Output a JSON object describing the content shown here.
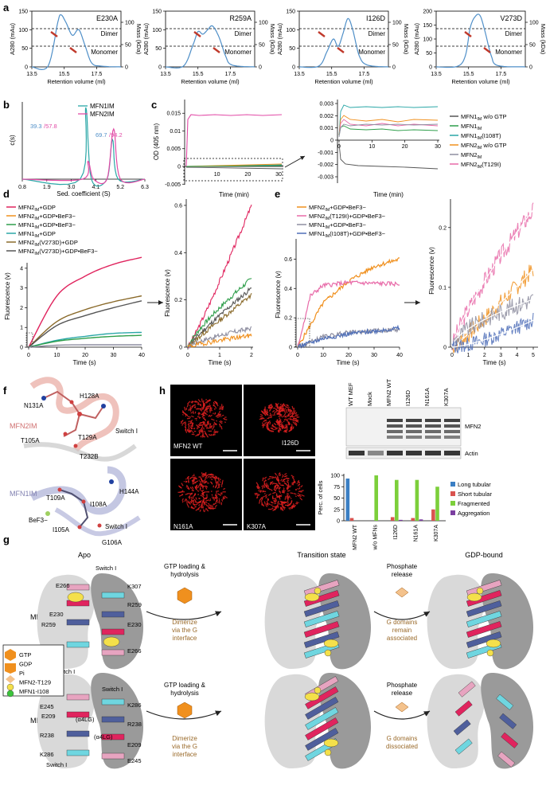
{
  "panel_letters": {
    "a": "a",
    "b": "b",
    "c": "c",
    "d": "d",
    "e": "e",
    "f": "f",
    "g": "g",
    "h": "h"
  },
  "colors": {
    "blue_line": "#4f8fc8",
    "red_arrow": "#c0392b",
    "teal": "#2aa7a7",
    "magenta": "#e24aa6",
    "crimson": "#e0245e",
    "orange": "#f0901e",
    "green": "#2e9e4a",
    "gray": "#8e8ea0",
    "brown": "#8a6a2a",
    "dark_gray": "#555555",
    "slate_blue": "#4f6fb8",
    "pink": "#e86aa8",
    "cell_red": "#e02020",
    "bar_blue": "#3b7fc4",
    "bar_red": "#d9534f",
    "bar_green": "#7ccf3b",
    "bar_purple": "#7b3fa0",
    "tan": "#9a6a2a",
    "gtp": "#f0901e",
    "pi": "#f4c28c",
    "yellow_dot": "#f4e04a",
    "green_dot": "#3cc43c"
  },
  "panel_a": {
    "ylabel_left": "A280 (mAu)",
    "ylabel_right": "Mass (kDa)",
    "xlabel": "Retention volume (ml)",
    "dimer": "Dimer",
    "monomer": "Monomer",
    "xticks": [
      "13.5",
      "15.5",
      "17.5"
    ],
    "right_ticks": [
      "100",
      "50",
      "0"
    ],
    "plots": [
      {
        "title": "E230A",
        "yticks": [
          "150",
          "100",
          "50",
          "0"
        ]
      },
      {
        "title": "R259A",
        "yticks": [
          "150",
          "100",
          "50",
          "0"
        ]
      },
      {
        "title": "I126D",
        "yticks": [
          "150",
          "100",
          "50",
          "0"
        ]
      },
      {
        "title": "V273D",
        "yticks": [
          "200",
          "150",
          "100",
          "50",
          "0"
        ]
      }
    ]
  },
  "panel_b": {
    "ylabel": "c(s)",
    "xlabel": "Sed. coefficient (S)",
    "xticks": [
      "0.8",
      "1.9",
      "3.0",
      "4.1",
      "5.2",
      "6.3"
    ],
    "legend": [
      "MFN1IM",
      "MFN2IM"
    ],
    "ann1a": "39.3",
    "ann1b": "/57.8",
    "ann2a": "69.7",
    "ann2b": "/94.2"
  },
  "panel_c": {
    "ylabel": "OD (405 nm)",
    "xlabel": "Time (min)",
    "yticks_left": [
      "0.015",
      "0.01",
      "0.005",
      "0",
      "-0.005"
    ],
    "xticks_left": [
      "10",
      "20",
      "30"
    ],
    "yticks_right": [
      "0.003",
      "0.002",
      "0.001",
      "0",
      "-0.001",
      "-0.002",
      "-0.003"
    ],
    "xticks_right": [
      "0",
      "10",
      "20",
      "30"
    ],
    "legend": [
      "MFN1IM w/o GTP",
      "MFN1IM",
      "MFN1IM(I108T)",
      "MFN2IM w/o GTP",
      "MFN2IM",
      "MFN2IM(T129I)"
    ],
    "zero_left": "0"
  },
  "panel_d": {
    "ylabel": "Fluorescence (v)",
    "xlabel": "Time (s)",
    "yticks_left": [
      "4",
      "3",
      "2",
      "1",
      "0"
    ],
    "xticks_left": [
      "0",
      "10",
      "20",
      "30",
      "40"
    ],
    "yticks_right": [
      "0.6",
      "0.4",
      "0.2",
      "0"
    ],
    "xticks_right": [
      "0",
      "1",
      "2"
    ],
    "legend": [
      "MFN2IM+GDP",
      "MFN2IM+GDP•BeF3−",
      "MFN1IM+GDP•BeF3−",
      "MFN1IM+GDP",
      "MFN2IM(V273D)+GDP",
      "MFN2IM(V273D)+GDP•BeF3−"
    ]
  },
  "panel_e": {
    "ylabel": "Fluorescence (v)",
    "xlabel": "Time (s)",
    "yticks_left": [
      "0.6",
      "0.4",
      "0.2",
      "0"
    ],
    "xticks_left": [
      "0",
      "10",
      "20",
      "30",
      "40"
    ],
    "yticks_right": [
      "0.2",
      "0.1",
      "0"
    ],
    "xticks_right": [
      "0",
      "1",
      "2",
      "3",
      "4",
      "5"
    ],
    "legend": [
      "MFN2IM+GDP•BeF3−",
      "MFN2IM(T129I)+GDP•BeF3−",
      "MFN1IM+GDP•BeF3−",
      "MFN1IM(I108T)+GDP•BeF3−"
    ]
  },
  "panel_f": {
    "mfn2": "MFN2IM",
    "mfn1": "MFN1IM",
    "top_labels": [
      "H128A",
      "N131A",
      "T105A",
      "T129A",
      "Switch I",
      "T232B"
    ],
    "bottom_labels": [
      "H144A",
      "T109A",
      "I108A",
      "BeF3−",
      "I105A",
      "Switch I",
      "G106A"
    ]
  },
  "panel_h": {
    "cells": [
      "MFN2 WT",
      "I126D",
      "N161A",
      "K307A"
    ],
    "blot_cols": [
      "WT MEF",
      "Mock",
      "MFN2 WT",
      "I126D",
      "N161A",
      "K307A"
    ],
    "blot_rows": [
      "MFN2",
      "Actin"
    ],
    "bar_ylabel": "Perc. of cells",
    "bar_yticks": [
      "100",
      "75",
      "50",
      "25",
      "0"
    ],
    "bar_categories": [
      "MFN2 WT",
      "w/o MFNs",
      "I126D",
      "N161A",
      "K307A"
    ],
    "bar_legend": [
      "Long tubular",
      "Short tubular",
      "Fragmented",
      "Aggregation"
    ]
  },
  "panel_g": {
    "col_titles": [
      "Apo",
      "Transition state",
      "GDP-bound"
    ],
    "rows": [
      "MFN2",
      "MFN1"
    ],
    "step1": [
      "GTP loading &",
      "hydrolysis"
    ],
    "step1b": [
      "Dimerize",
      "via the G",
      "interface"
    ],
    "step2": [
      "Phosphate",
      "release"
    ],
    "mfn2_out": [
      "G domains",
      "remain",
      "associated"
    ],
    "mfn1_out": [
      "G domains",
      "dissociated"
    ],
    "legend": [
      "GTP",
      "GDP",
      "Pi",
      "MFN2-T129",
      "MFN1-I108"
    ],
    "mfn2_res": [
      "E266",
      "K307",
      "R259",
      "E230",
      "R259",
      "E230",
      "K307",
      "E266",
      "Switch I",
      "Switch I"
    ],
    "mfn1_res": [
      "Switch I",
      "E245",
      "K286",
      "E209",
      "R238",
      "(α4LG)",
      "R238",
      "(α4LG)",
      "E209",
      "K286",
      "E245",
      "Switch I"
    ]
  },
  "chart_data": [
    {
      "type": "line",
      "title": "E230A",
      "xlabel": "Retention volume (ml)",
      "ylabel": "A280 (mAu)",
      "xlim": [
        13.5,
        19
      ],
      "ylim": [
        0,
        150
      ],
      "x": [
        13.5,
        14.5,
        15.1,
        15.3,
        15.6,
        16.0,
        16.4,
        16.8,
        17.2,
        17.8,
        19
      ],
      "y": [
        0,
        2,
        120,
        140,
        120,
        85,
        100,
        55,
        10,
        2,
        0
      ]
    },
    {
      "type": "line",
      "title": "R259A",
      "xlabel": "Retention volume (ml)",
      "ylabel": "A280 (mAu)",
      "xlim": [
        13.5,
        19
      ],
      "ylim": [
        0,
        150
      ],
      "x": [
        13.5,
        14.6,
        15.2,
        15.5,
        15.8,
        16.1,
        16.4,
        16.8,
        17.2,
        17.6,
        19
      ],
      "y": [
        0,
        2,
        60,
        95,
        88,
        100,
        110,
        80,
        30,
        5,
        0
      ]
    },
    {
      "type": "line",
      "title": "I126D",
      "xlabel": "Retention volume (ml)",
      "ylabel": "A280 (mAu)",
      "xlim": [
        13.5,
        19
      ],
      "ylim": [
        0,
        150
      ],
      "x": [
        13.5,
        14.7,
        15.2,
        15.6,
        15.9,
        16.2,
        16.5,
        16.8,
        17.2,
        17.7,
        19
      ],
      "y": [
        0,
        2,
        40,
        75,
        55,
        90,
        130,
        100,
        30,
        5,
        0
      ]
    },
    {
      "type": "line",
      "title": "V273D",
      "xlabel": "Retention volume (ml)",
      "ylabel": "A280 (mAu)",
      "xlim": [
        13.5,
        19
      ],
      "ylim": [
        0,
        200
      ],
      "x": [
        13.5,
        14.8,
        15.3,
        15.6,
        15.9,
        16.2,
        16.5,
        16.9,
        17.3,
        19
      ],
      "y": [
        0,
        2,
        40,
        140,
        180,
        185,
        130,
        40,
        5,
        0
      ]
    },
    {
      "type": "line",
      "xlabel": "Sed. coefficient (S)",
      "ylabel": "c(s)",
      "series": [
        {
          "name": "MFN1IM",
          "x": [
            0.8,
            3.4,
            3.65,
            3.9,
            4.6,
            4.85,
            5.1,
            6.3
          ],
          "y": [
            0,
            0,
            1.0,
            0,
            0,
            0.55,
            0,
            0
          ]
        },
        {
          "name": "MFN2IM",
          "x": [
            0.8,
            3.5,
            3.75,
            4.0,
            4.6,
            4.9,
            5.2,
            6.3
          ],
          "y": [
            0,
            0,
            0.25,
            0,
            0,
            0.7,
            0,
            0
          ]
        }
      ]
    },
    {
      "type": "line",
      "xlabel": "Time (min)",
      "ylabel": "OD (405 nm)",
      "series": [
        {
          "name": "MFN2IM",
          "x": [
            0,
            1,
            3,
            10,
            20,
            30
          ],
          "y": [
            0,
            0.0155,
            0.0165,
            0.0165,
            0.0165,
            0.0165
          ]
        }
      ]
    },
    {
      "type": "line",
      "xlabel": "Time (s)",
      "ylabel": "Fluorescence (v)",
      "series": [
        {
          "name": "MFN2IM+GDP",
          "x": [
            0,
            10,
            20,
            30,
            40
          ],
          "y": [
            0,
            2.6,
            3.6,
            4.2,
            4.55
          ]
        },
        {
          "name": "MFN2IM(V273D)+GDP",
          "x": [
            0,
            10,
            20,
            30,
            40
          ],
          "y": [
            0,
            1.3,
            1.9,
            2.3,
            2.6
          ]
        },
        {
          "name": "MFN2IM(V273D)+GDP•BeF3−",
          "x": [
            0,
            10,
            20,
            30,
            40
          ],
          "y": [
            0,
            1.1,
            1.6,
            2.0,
            2.35
          ]
        },
        {
          "name": "MFN1IM+GDP",
          "x": [
            0,
            10,
            20,
            30,
            40
          ],
          "y": [
            0,
            0.35,
            0.55,
            0.7,
            0.75
          ]
        },
        {
          "name": "MFN1IM+GDP•BeF3−",
          "x": [
            0,
            10,
            20,
            30,
            40
          ],
          "y": [
            0,
            0.3,
            0.45,
            0.55,
            0.6
          ]
        },
        {
          "name": "MFN2IM+GDP•BeF3−",
          "x": [
            0,
            10,
            20,
            30,
            40
          ],
          "y": [
            0,
            0.1,
            0.12,
            0.12,
            0.12
          ]
        }
      ]
    },
    {
      "type": "line",
      "xlabel": "Time (s)",
      "ylabel": "Fluorescence (v)",
      "series": [
        {
          "name": "MFN2IM+GDP•BeF3−",
          "x": [
            0,
            10,
            20,
            30,
            40
          ],
          "y": [
            0,
            0.3,
            0.45,
            0.55,
            0.6
          ]
        },
        {
          "name": "MFN2IM(T129I)+GDP•BeF3−",
          "x": [
            0,
            5,
            10,
            20,
            40
          ],
          "y": [
            0,
            0.35,
            0.42,
            0.44,
            0.43
          ]
        },
        {
          "name": "MFN1IM+GDP•BeF3−",
          "x": [
            0,
            10,
            20,
            40
          ],
          "y": [
            0,
            0.07,
            0.1,
            0.12
          ]
        },
        {
          "name": "MFN1IM(I108T)+GDP•BeF3−",
          "x": [
            0,
            10,
            20,
            40
          ],
          "y": [
            0,
            0.06,
            0.09,
            0.13
          ]
        }
      ]
    },
    {
      "type": "bar",
      "ylabel": "Perc. of cells",
      "ylim": [
        0,
        100
      ],
      "categories": [
        "MFN2 WT",
        "w/o MFNs",
        "I126D",
        "N161A",
        "K307A"
      ],
      "series": [
        {
          "name": "Long tubular",
          "values": [
            93,
            0,
            0,
            0,
            0
          ]
        },
        {
          "name": "Short tubular",
          "values": [
            6,
            0,
            8,
            6,
            25
          ]
        },
        {
          "name": "Fragmented",
          "values": [
            0,
            100,
            90,
            90,
            75
          ]
        },
        {
          "name": "Aggregation",
          "values": [
            0,
            0,
            2,
            3,
            0
          ]
        }
      ]
    }
  ]
}
